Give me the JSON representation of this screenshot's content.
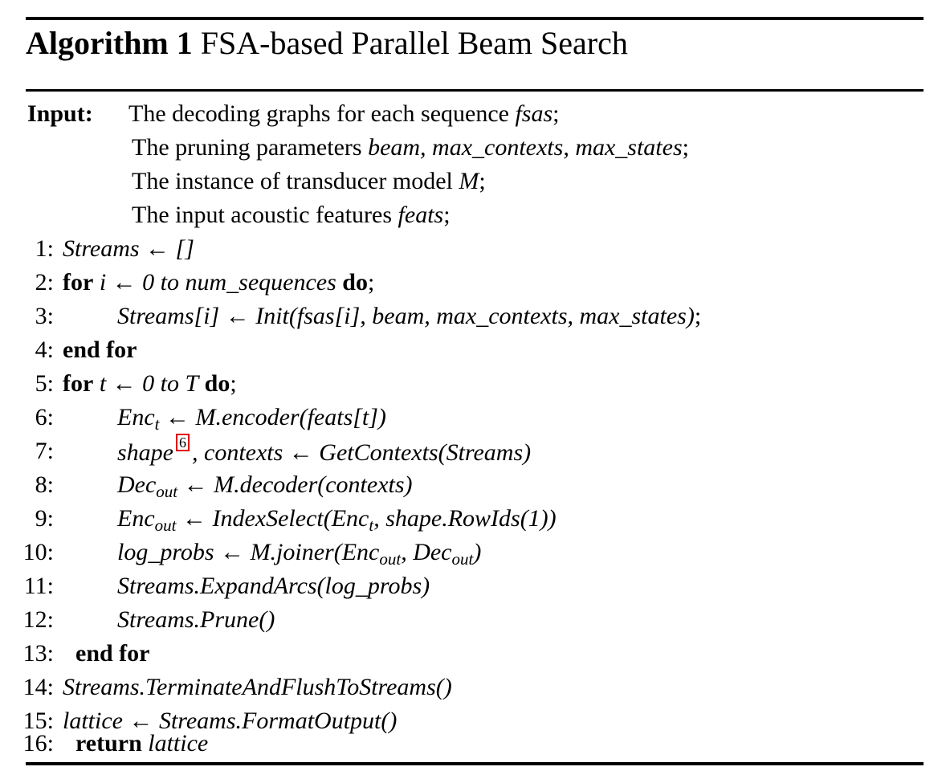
{
  "algorithm": {
    "label": "Algorithm 1",
    "title": "FSA-based Parallel Beam Search"
  },
  "input": {
    "label": "Input:",
    "lines": [
      {
        "text": "The decoding graphs for each sequence ",
        "var": "fsas",
        "end": ";"
      },
      {
        "text": "The pruning parameters ",
        "vars": "beam, max_contexts, max_states",
        "end": ";"
      },
      {
        "text": "The instance of transducer model ",
        "var": "M",
        "end": ";"
      },
      {
        "text": "The input acoustic features ",
        "var": "feats",
        "end": ";"
      }
    ]
  },
  "steps": [
    {
      "n": "1:",
      "code": "Streams ← []"
    },
    {
      "n": "2:",
      "kw1": "for",
      "code": "i ← 0 to num_sequences",
      "kw2": "do",
      "end": ";"
    },
    {
      "n": "3:",
      "code": "Streams[i] ← Init(fsas[i], beam, max_contexts, max_states)",
      "end": ";"
    },
    {
      "n": "4:",
      "kw1": "end for"
    },
    {
      "n": "5:",
      "kw1": "for",
      "code": "t ← 0 to T",
      "kw2": "do",
      "end": ";"
    },
    {
      "n": "6:",
      "code_a": "Enc",
      "sub": "t",
      "code_b": " ← M.encoder(feats[t])"
    },
    {
      "n": "7:",
      "code_a": "shape",
      "footnote": "6",
      "code_b": ", contexts ← GetContexts(Streams)"
    },
    {
      "n": "8:",
      "code_a": "Dec",
      "sub": "out",
      "code_b": " ← M.decoder(contexts)"
    },
    {
      "n": "9:",
      "code_a": "Enc",
      "sub": "out",
      "code_b": " ← IndexSelect(Enc",
      "sub2": "t",
      "code_c": ", shape.RowIds(1))"
    },
    {
      "n": "10:",
      "code_a": "log_probs ← M.joiner(Enc",
      "sub": "out",
      "code_b": ", Dec",
      "sub2": "out",
      "code_c": ")"
    },
    {
      "n": "11:",
      "code": "Streams.ExpandArcs(log_probs)"
    },
    {
      "n": "12:",
      "code": "Streams.Prune()"
    },
    {
      "n": "13:",
      "kw1": "end for"
    },
    {
      "n": "14:",
      "code": "Streams.TerminateAndFlushToStreams()"
    },
    {
      "n": "15:",
      "code": "lattice ← Streams.FormatOutput()"
    },
    {
      "n": "16:",
      "kw1": "return",
      "code": "lattice"
    }
  ]
}
